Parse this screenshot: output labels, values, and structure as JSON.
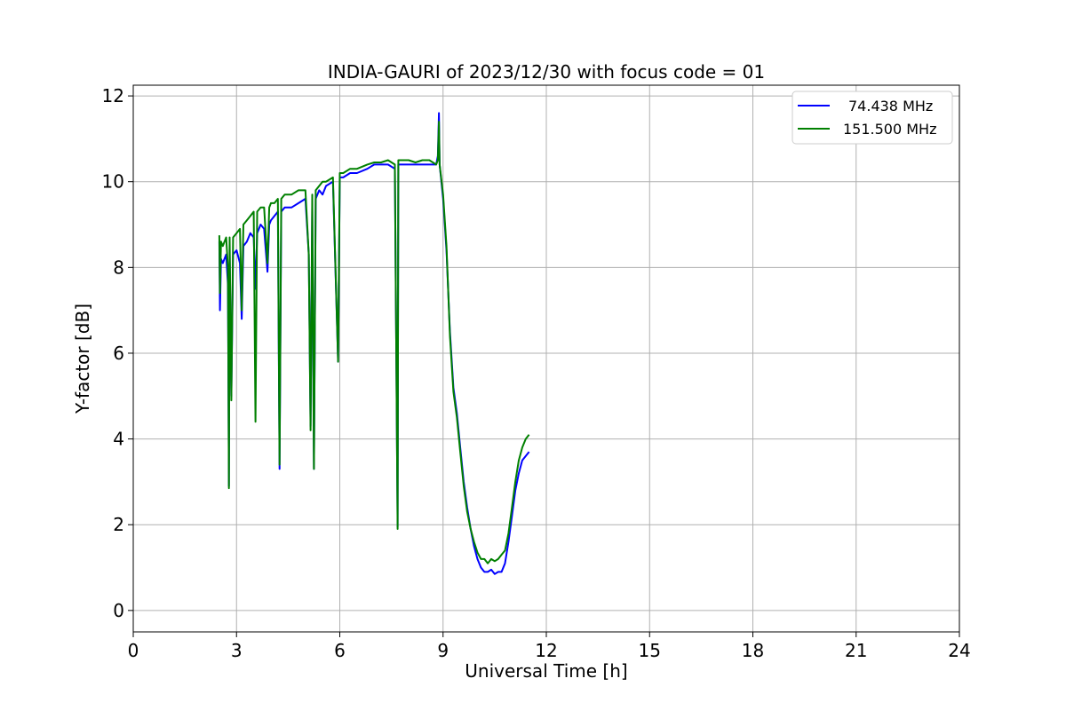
{
  "chart_data": {
    "type": "line",
    "title": "INDIA-GAURI of 2023/12/30 with focus code = 01",
    "xlabel": "Universal Time [h]",
    "ylabel": "Y-factor [dB]",
    "xlim": [
      0,
      24
    ],
    "ylim": [
      -0.5,
      12.25
    ],
    "xticks": [
      0,
      3,
      6,
      9,
      12,
      15,
      18,
      21,
      24
    ],
    "xtick_labels": [
      "0",
      "3",
      "6",
      "9",
      "12",
      "15",
      "18",
      "21",
      "24"
    ],
    "yticks": [
      0,
      2,
      4,
      6,
      8,
      10,
      12
    ],
    "ytick_labels": [
      "0",
      "2",
      "4",
      "6",
      "8",
      "10",
      "12"
    ],
    "grid": true,
    "legend_position": "top-right",
    "series": [
      {
        "name": "74.438 MHz",
        "color": "#0000ff",
        "x": [
          2.5,
          2.52,
          2.55,
          2.6,
          2.7,
          2.75,
          2.78,
          2.8,
          2.85,
          2.9,
          3.0,
          3.1,
          3.15,
          3.2,
          3.3,
          3.4,
          3.5,
          3.55,
          3.6,
          3.7,
          3.8,
          3.9,
          3.95,
          4.0,
          4.1,
          4.2,
          4.25,
          4.3,
          4.4,
          4.6,
          4.8,
          5.0,
          5.1,
          5.15,
          5.2,
          5.25,
          5.3,
          5.4,
          5.5,
          5.6,
          5.8,
          5.95,
          6.0,
          6.1,
          6.3,
          6.5,
          6.8,
          7.0,
          7.2,
          7.4,
          7.6,
          7.68,
          7.7,
          7.8,
          8.0,
          8.2,
          8.4,
          8.6,
          8.8,
          8.85,
          8.88,
          8.9,
          9.0,
          9.1,
          9.2,
          9.3,
          9.4,
          9.5,
          9.6,
          9.7,
          9.8,
          9.9,
          10.0,
          10.1,
          10.2,
          10.3,
          10.4,
          10.5,
          10.6,
          10.7,
          10.8,
          10.9,
          11.0,
          11.1,
          11.2,
          11.3,
          11.4,
          11.5
        ],
        "values": [
          8.6,
          7.0,
          8.2,
          8.1,
          8.3,
          7.6,
          2.9,
          8.3,
          5.0,
          8.3,
          8.4,
          8.1,
          6.8,
          8.5,
          8.6,
          8.8,
          8.7,
          7.5,
          8.8,
          9.0,
          8.9,
          7.9,
          9.0,
          9.1,
          9.2,
          9.3,
          3.3,
          9.3,
          9.4,
          9.4,
          9.5,
          9.6,
          8.3,
          4.3,
          9.4,
          3.3,
          9.6,
          9.8,
          9.7,
          9.9,
          10.0,
          5.8,
          10.1,
          10.1,
          10.2,
          10.2,
          10.3,
          10.4,
          10.4,
          10.4,
          10.3,
          1.95,
          10.4,
          10.4,
          10.4,
          10.4,
          10.4,
          10.4,
          10.4,
          10.6,
          11.6,
          10.4,
          9.6,
          8.4,
          6.5,
          5.2,
          4.6,
          3.8,
          3.0,
          2.4,
          1.9,
          1.5,
          1.2,
          1.0,
          0.9,
          0.9,
          0.95,
          0.85,
          0.9,
          0.9,
          1.1,
          1.6,
          2.2,
          2.8,
          3.2,
          3.5,
          3.6,
          3.7
        ]
      },
      {
        "name": "151.500 MHz",
        "color": "#008000",
        "x": [
          2.5,
          2.52,
          2.55,
          2.6,
          2.7,
          2.75,
          2.78,
          2.8,
          2.85,
          2.9,
          3.0,
          3.1,
          3.15,
          3.2,
          3.3,
          3.4,
          3.5,
          3.55,
          3.6,
          3.7,
          3.8,
          3.9,
          3.95,
          4.0,
          4.1,
          4.2,
          4.25,
          4.3,
          4.4,
          4.6,
          4.8,
          5.0,
          5.1,
          5.15,
          5.2,
          5.25,
          5.3,
          5.4,
          5.5,
          5.6,
          5.8,
          5.95,
          6.0,
          6.1,
          6.3,
          6.5,
          6.8,
          7.0,
          7.2,
          7.4,
          7.6,
          7.68,
          7.7,
          7.8,
          8.0,
          8.2,
          8.4,
          8.6,
          8.8,
          8.85,
          8.88,
          8.9,
          9.0,
          9.1,
          9.2,
          9.3,
          9.4,
          9.5,
          9.6,
          9.7,
          9.8,
          9.9,
          10.0,
          10.1,
          10.2,
          10.3,
          10.4,
          10.5,
          10.6,
          10.7,
          10.8,
          10.9,
          11.0,
          11.1,
          11.2,
          11.3,
          11.4,
          11.5
        ],
        "values": [
          8.75,
          7.4,
          8.6,
          8.5,
          8.7,
          8.0,
          2.85,
          8.7,
          4.9,
          8.7,
          8.8,
          8.9,
          7.0,
          9.0,
          9.1,
          9.2,
          9.3,
          4.4,
          9.3,
          9.4,
          9.4,
          8.1,
          9.4,
          9.5,
          9.5,
          9.6,
          3.4,
          9.6,
          9.7,
          9.7,
          9.8,
          9.8,
          8.3,
          4.2,
          9.7,
          3.3,
          9.8,
          9.9,
          10.0,
          10.0,
          10.1,
          5.8,
          10.2,
          10.2,
          10.3,
          10.3,
          10.4,
          10.45,
          10.45,
          10.5,
          10.4,
          1.9,
          10.5,
          10.5,
          10.5,
          10.45,
          10.5,
          10.5,
          10.4,
          10.5,
          11.4,
          10.4,
          9.7,
          8.5,
          6.4,
          5.1,
          4.5,
          3.7,
          2.9,
          2.3,
          1.9,
          1.6,
          1.35,
          1.2,
          1.2,
          1.1,
          1.2,
          1.15,
          1.2,
          1.3,
          1.4,
          1.8,
          2.4,
          3.0,
          3.5,
          3.8,
          4.0,
          4.1
        ]
      }
    ]
  }
}
